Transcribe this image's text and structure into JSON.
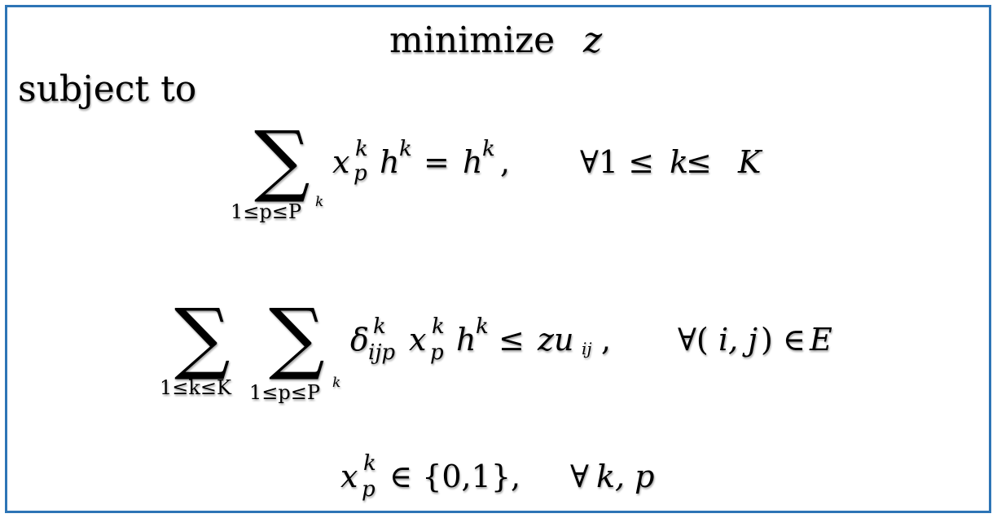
{
  "objective": {
    "keyword": "minimize",
    "variable": "z"
  },
  "subject_to_label": "subject to",
  "constraints": [
    {
      "sum_symbol": "∑",
      "sum_index": "1≤p≤P",
      "sum_index_sup": "k",
      "x": "x",
      "x_sup": "k",
      "x_sub": "p",
      "h": "h",
      "h_sup": "k",
      "relation": "=",
      "rhs": "h",
      "rhs_sup": "k",
      "comma": ",",
      "quantifier": "∀1 ≤ ",
      "quantifier_var": "k",
      "quantifier_rel": " ≤ ",
      "quantifier_bound": "K"
    },
    {
      "sum1_symbol": "∑",
      "sum1_index": "1≤k≤K",
      "sum2_symbol": "∑",
      "sum2_index": "1≤p≤P",
      "sum2_index_sup": "k",
      "delta": "δ",
      "delta_sup": "k",
      "delta_sub": "ijp",
      "x": "x",
      "x_sup": "k",
      "x_sub": "p",
      "h": "h",
      "h_sup": "k",
      "relation": "≤",
      "rhs": "zu",
      "rhs_sub": "ij",
      "comma": ",",
      "quantifier": "∀(",
      "quantifier_vars": "i, j",
      "quantifier_close": ") ∈ ",
      "quantifier_set": "E"
    },
    {
      "x": "x",
      "x_sup": "k",
      "x_sub": "p",
      "domain": "∈ {0,1},",
      "quantifier": "∀",
      "quantifier_vars": "k, p"
    }
  ]
}
